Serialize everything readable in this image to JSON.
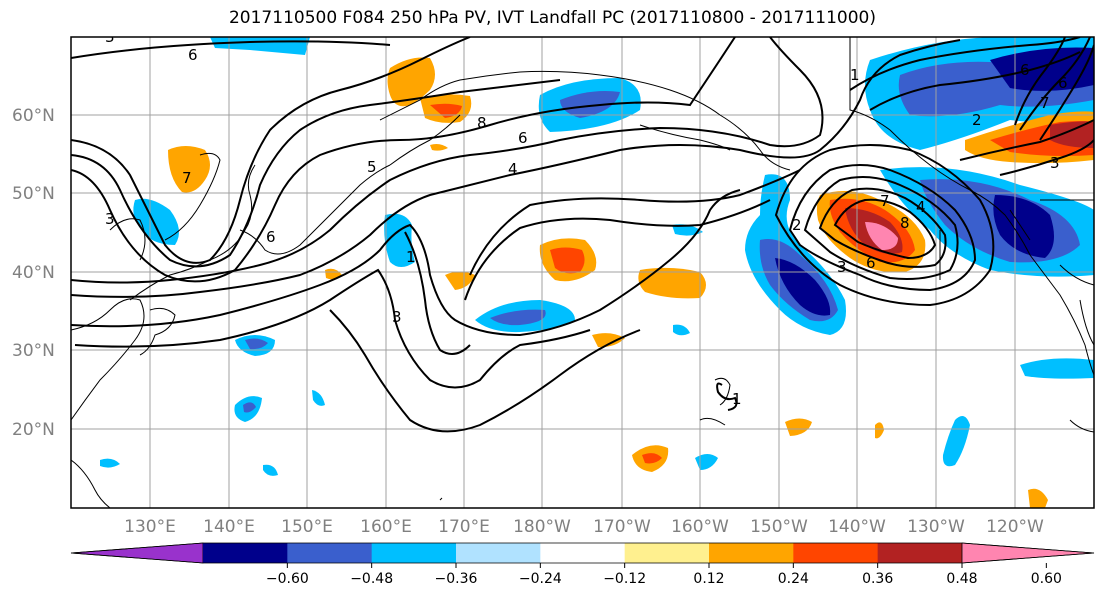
{
  "title": "2017110500 F084 250 hPa PV, IVT Landfall PC (2017110800 - 2017111000)",
  "lat_labels": [
    "60°N",
    "50°N",
    "40°N",
    "30°N",
    "20°N"
  ],
  "lon_labels": [
    "130°E",
    "140°E",
    "150°E",
    "160°E",
    "170°E",
    "180°W",
    "170°W",
    "160°W",
    "150°W",
    "140°W",
    "130°W",
    "120°W"
  ],
  "colorbar": {
    "ticks": [
      "−0.60",
      "−0.48",
      "−0.36",
      "−0.24",
      "−0.12",
      "0.12",
      "0.24",
      "0.36",
      "0.48",
      "0.60"
    ],
    "colors": [
      "#9932cc",
      "#00008b",
      "#3a5fcd",
      "#00bfff",
      "#b0e2ff",
      "#ffffff",
      "#fff08f",
      "#ffa500",
      "#ff4500",
      "#b22222",
      "#ff85b0"
    ]
  },
  "contour_labels": [
    "6",
    "3",
    "6",
    "5",
    "4",
    "6",
    "8",
    "7",
    "3",
    "3",
    "1",
    "2",
    "3",
    "6",
    "7",
    "8",
    "4",
    "1",
    "1",
    "2",
    "3",
    "6",
    "7",
    "6"
  ],
  "colors": {
    "pos_fill_mid": "#ffa500",
    "pos_fill_strong": "#ff4500",
    "pos_fill_max": "#ff85b0",
    "neg_fill_light": "#00bfff",
    "neg_fill_mid": "#3a5fcd",
    "neg_fill_strong": "#00008b"
  }
}
